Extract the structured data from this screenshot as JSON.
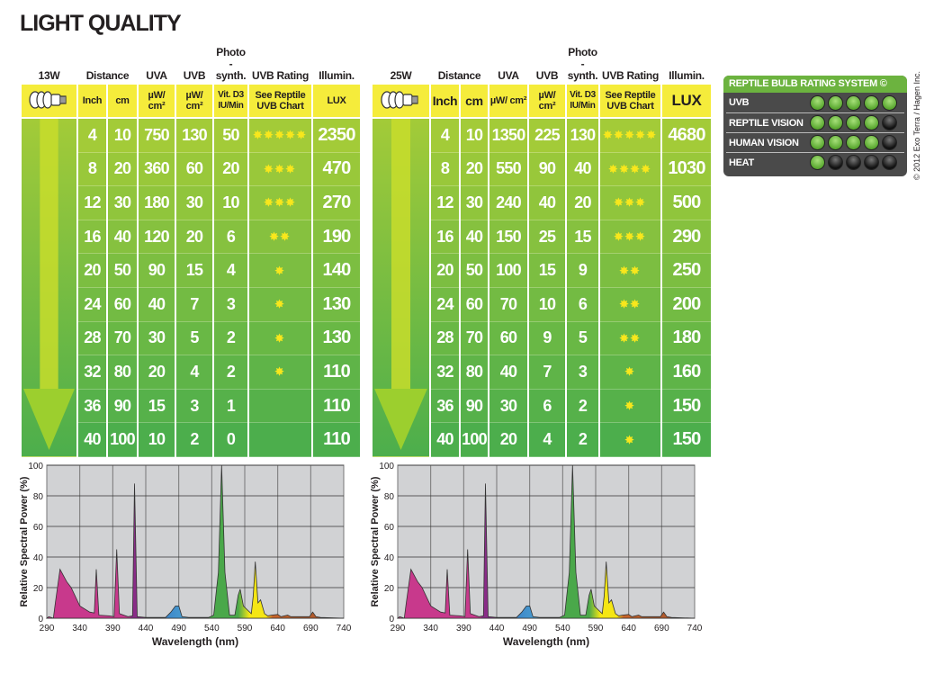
{
  "title": "LIGHT QUALITY",
  "column_headers": {
    "distance": "Distance",
    "uva": "UVA",
    "uvb": "UVB",
    "photo": "Photo -synth.",
    "rating": "UVB Rating",
    "illum": "Illumin."
  },
  "sub_headers": {
    "inch": "Inch",
    "cm": "cm",
    "uva_unit": "µW/ cm²",
    "uvb_unit": "µW/ cm²",
    "photo_unit": "Vit. D3 IU/Min",
    "rating_unit": "See Reptile UVB Chart",
    "lux": "LUX"
  },
  "tables": [
    {
      "wattage": "13W",
      "rows": [
        {
          "inch": "4",
          "cm": "10",
          "uva": "750",
          "uvb": "130",
          "photo": "50",
          "stars": 5,
          "lux": "2350"
        },
        {
          "inch": "8",
          "cm": "20",
          "uva": "360",
          "uvb": "60",
          "photo": "20",
          "stars": 3,
          "lux": "470"
        },
        {
          "inch": "12",
          "cm": "30",
          "uva": "180",
          "uvb": "30",
          "photo": "10",
          "stars": 3,
          "lux": "270"
        },
        {
          "inch": "16",
          "cm": "40",
          "uva": "120",
          "uvb": "20",
          "photo": "6",
          "stars": 2,
          "lux": "190"
        },
        {
          "inch": "20",
          "cm": "50",
          "uva": "90",
          "uvb": "15",
          "photo": "4",
          "stars": 1,
          "lux": "140"
        },
        {
          "inch": "24",
          "cm": "60",
          "uva": "40",
          "uvb": "7",
          "photo": "3",
          "stars": 1,
          "lux": "130"
        },
        {
          "inch": "28",
          "cm": "70",
          "uva": "30",
          "uvb": "5",
          "photo": "2",
          "stars": 1,
          "lux": "130"
        },
        {
          "inch": "32",
          "cm": "80",
          "uva": "20",
          "uvb": "4",
          "photo": "2",
          "stars": 1,
          "lux": "110"
        },
        {
          "inch": "36",
          "cm": "90",
          "uva": "15",
          "uvb": "3",
          "photo": "1",
          "stars": 0,
          "lux": "110"
        },
        {
          "inch": "40",
          "cm": "100",
          "uva": "10",
          "uvb": "2",
          "photo": "0",
          "stars": 0,
          "lux": "110"
        }
      ]
    },
    {
      "wattage": "25W",
      "rows": [
        {
          "inch": "4",
          "cm": "10",
          "uva": "1350",
          "uvb": "225",
          "photo": "130",
          "stars": 5,
          "lux": "4680"
        },
        {
          "inch": "8",
          "cm": "20",
          "uva": "550",
          "uvb": "90",
          "photo": "40",
          "stars": 4,
          "lux": "1030"
        },
        {
          "inch": "12",
          "cm": "30",
          "uva": "240",
          "uvb": "40",
          "photo": "20",
          "stars": 3,
          "lux": "500"
        },
        {
          "inch": "16",
          "cm": "40",
          "uva": "150",
          "uvb": "25",
          "photo": "15",
          "stars": 3,
          "lux": "290"
        },
        {
          "inch": "20",
          "cm": "50",
          "uva": "100",
          "uvb": "15",
          "photo": "9",
          "stars": 2,
          "lux": "250"
        },
        {
          "inch": "24",
          "cm": "60",
          "uva": "70",
          "uvb": "10",
          "photo": "6",
          "stars": 2,
          "lux": "200"
        },
        {
          "inch": "28",
          "cm": "70",
          "uva": "60",
          "uvb": "9",
          "photo": "5",
          "stars": 2,
          "lux": "180"
        },
        {
          "inch": "32",
          "cm": "80",
          "uva": "40",
          "uvb": "7",
          "photo": "3",
          "stars": 1,
          "lux": "160"
        },
        {
          "inch": "36",
          "cm": "90",
          "uva": "30",
          "uvb": "6",
          "photo": "2",
          "stars": 1,
          "lux": "150"
        },
        {
          "inch": "40",
          "cm": "100",
          "uva": "20",
          "uvb": "4",
          "photo": "2",
          "stars": 1,
          "lux": "150"
        }
      ]
    }
  ],
  "rating_system": {
    "title": "REPTILE BULB RATING SYSTEM ©",
    "rows": [
      {
        "label": "UVB",
        "on": 5
      },
      {
        "label": "REPTILE VISION",
        "on": 4
      },
      {
        "label": "HUMAN VISION",
        "on": 4
      },
      {
        "label": "HEAT",
        "on": 1
      }
    ]
  },
  "copyright": "© 2012 Exo Terra / Hagen Inc.",
  "colors": {
    "row_top": "#a3cb38",
    "row_bottom": "#4cae4c",
    "header_yellow": "#f5ec3b",
    "star": "#f8e71c"
  },
  "chart_data": [
    {
      "type": "area",
      "title": "",
      "xlabel": "Wavelength (nm)",
      "ylabel": "Relative Spectral Power (%)",
      "xlim": [
        290,
        740
      ],
      "ylim": [
        0,
        100
      ],
      "xticks": [
        290,
        340,
        390,
        440,
        490,
        540,
        590,
        640,
        690,
        740
      ],
      "yticks": [
        0,
        20,
        40,
        60,
        80,
        100
      ],
      "grid": true,
      "points": [
        [
          290,
          0
        ],
        [
          293,
          1
        ],
        [
          297,
          0.5
        ],
        [
          300,
          0
        ],
        [
          303,
          10
        ],
        [
          310,
          32
        ],
        [
          320,
          24
        ],
        [
          327,
          20
        ],
        [
          340,
          8
        ],
        [
          355,
          4
        ],
        [
          362,
          3.5
        ],
        [
          365,
          32
        ],
        [
          369,
          2
        ],
        [
          385,
          1.5
        ],
        [
          392,
          1
        ],
        [
          396,
          45
        ],
        [
          400,
          3
        ],
        [
          413,
          1
        ],
        [
          420,
          1.5
        ],
        [
          423,
          88
        ],
        [
          427,
          1
        ],
        [
          440,
          0.5
        ],
        [
          470,
          0.5
        ],
        [
          478,
          4
        ],
        [
          485,
          8
        ],
        [
          490,
          8
        ],
        [
          495,
          1
        ],
        [
          505,
          0.5
        ],
        [
          535,
          0.5
        ],
        [
          543,
          2
        ],
        [
          550,
          30
        ],
        [
          555,
          100
        ],
        [
          560,
          30
        ],
        [
          567,
          2
        ],
        [
          575,
          2
        ],
        [
          580,
          15
        ],
        [
          583,
          19
        ],
        [
          588,
          8
        ],
        [
          595,
          5
        ],
        [
          600,
          3
        ],
        [
          603,
          15
        ],
        [
          606,
          37
        ],
        [
          610,
          10
        ],
        [
          614,
          12
        ],
        [
          620,
          3
        ],
        [
          625,
          1.5
        ],
        [
          630,
          2
        ],
        [
          640,
          2.5
        ],
        [
          645,
          1
        ],
        [
          655,
          2
        ],
        [
          660,
          1
        ],
        [
          680,
          1
        ],
        [
          688,
          1
        ],
        [
          693,
          4
        ],
        [
          698,
          1
        ],
        [
          705,
          0.5
        ],
        [
          740,
          0
        ]
      ]
    },
    {
      "type": "area",
      "title": "",
      "xlabel": "Wavelength (nm)",
      "ylabel": "Relative Spectral Power (%)",
      "xlim": [
        290,
        740
      ],
      "ylim": [
        0,
        100
      ],
      "xticks": [
        290,
        340,
        390,
        440,
        490,
        540,
        590,
        640,
        690,
        740
      ],
      "yticks": [
        0,
        20,
        40,
        60,
        80,
        100
      ],
      "grid": true,
      "points": [
        [
          290,
          0
        ],
        [
          293,
          1
        ],
        [
          297,
          0.5
        ],
        [
          300,
          0
        ],
        [
          303,
          10
        ],
        [
          310,
          32
        ],
        [
          320,
          24
        ],
        [
          327,
          20
        ],
        [
          340,
          8
        ],
        [
          355,
          4
        ],
        [
          362,
          3.5
        ],
        [
          365,
          32
        ],
        [
          369,
          2
        ],
        [
          385,
          1.5
        ],
        [
          392,
          1
        ],
        [
          396,
          45
        ],
        [
          400,
          3
        ],
        [
          413,
          1
        ],
        [
          420,
          1.5
        ],
        [
          423,
          88
        ],
        [
          427,
          1
        ],
        [
          440,
          0.5
        ],
        [
          470,
          0.5
        ],
        [
          478,
          4
        ],
        [
          485,
          8
        ],
        [
          490,
          8
        ],
        [
          495,
          1
        ],
        [
          505,
          0.5
        ],
        [
          535,
          0.5
        ],
        [
          543,
          2
        ],
        [
          550,
          30
        ],
        [
          555,
          100
        ],
        [
          560,
          30
        ],
        [
          567,
          2
        ],
        [
          575,
          2
        ],
        [
          580,
          15
        ],
        [
          583,
          19
        ],
        [
          588,
          8
        ],
        [
          595,
          5
        ],
        [
          600,
          3
        ],
        [
          603,
          15
        ],
        [
          606,
          37
        ],
        [
          610,
          10
        ],
        [
          614,
          12
        ],
        [
          620,
          3
        ],
        [
          625,
          1.5
        ],
        [
          630,
          2
        ],
        [
          640,
          2.5
        ],
        [
          645,
          1
        ],
        [
          655,
          2
        ],
        [
          660,
          1
        ],
        [
          680,
          1
        ],
        [
          688,
          1
        ],
        [
          693,
          4
        ],
        [
          698,
          1
        ],
        [
          705,
          0.5
        ],
        [
          740,
          0
        ]
      ]
    }
  ]
}
